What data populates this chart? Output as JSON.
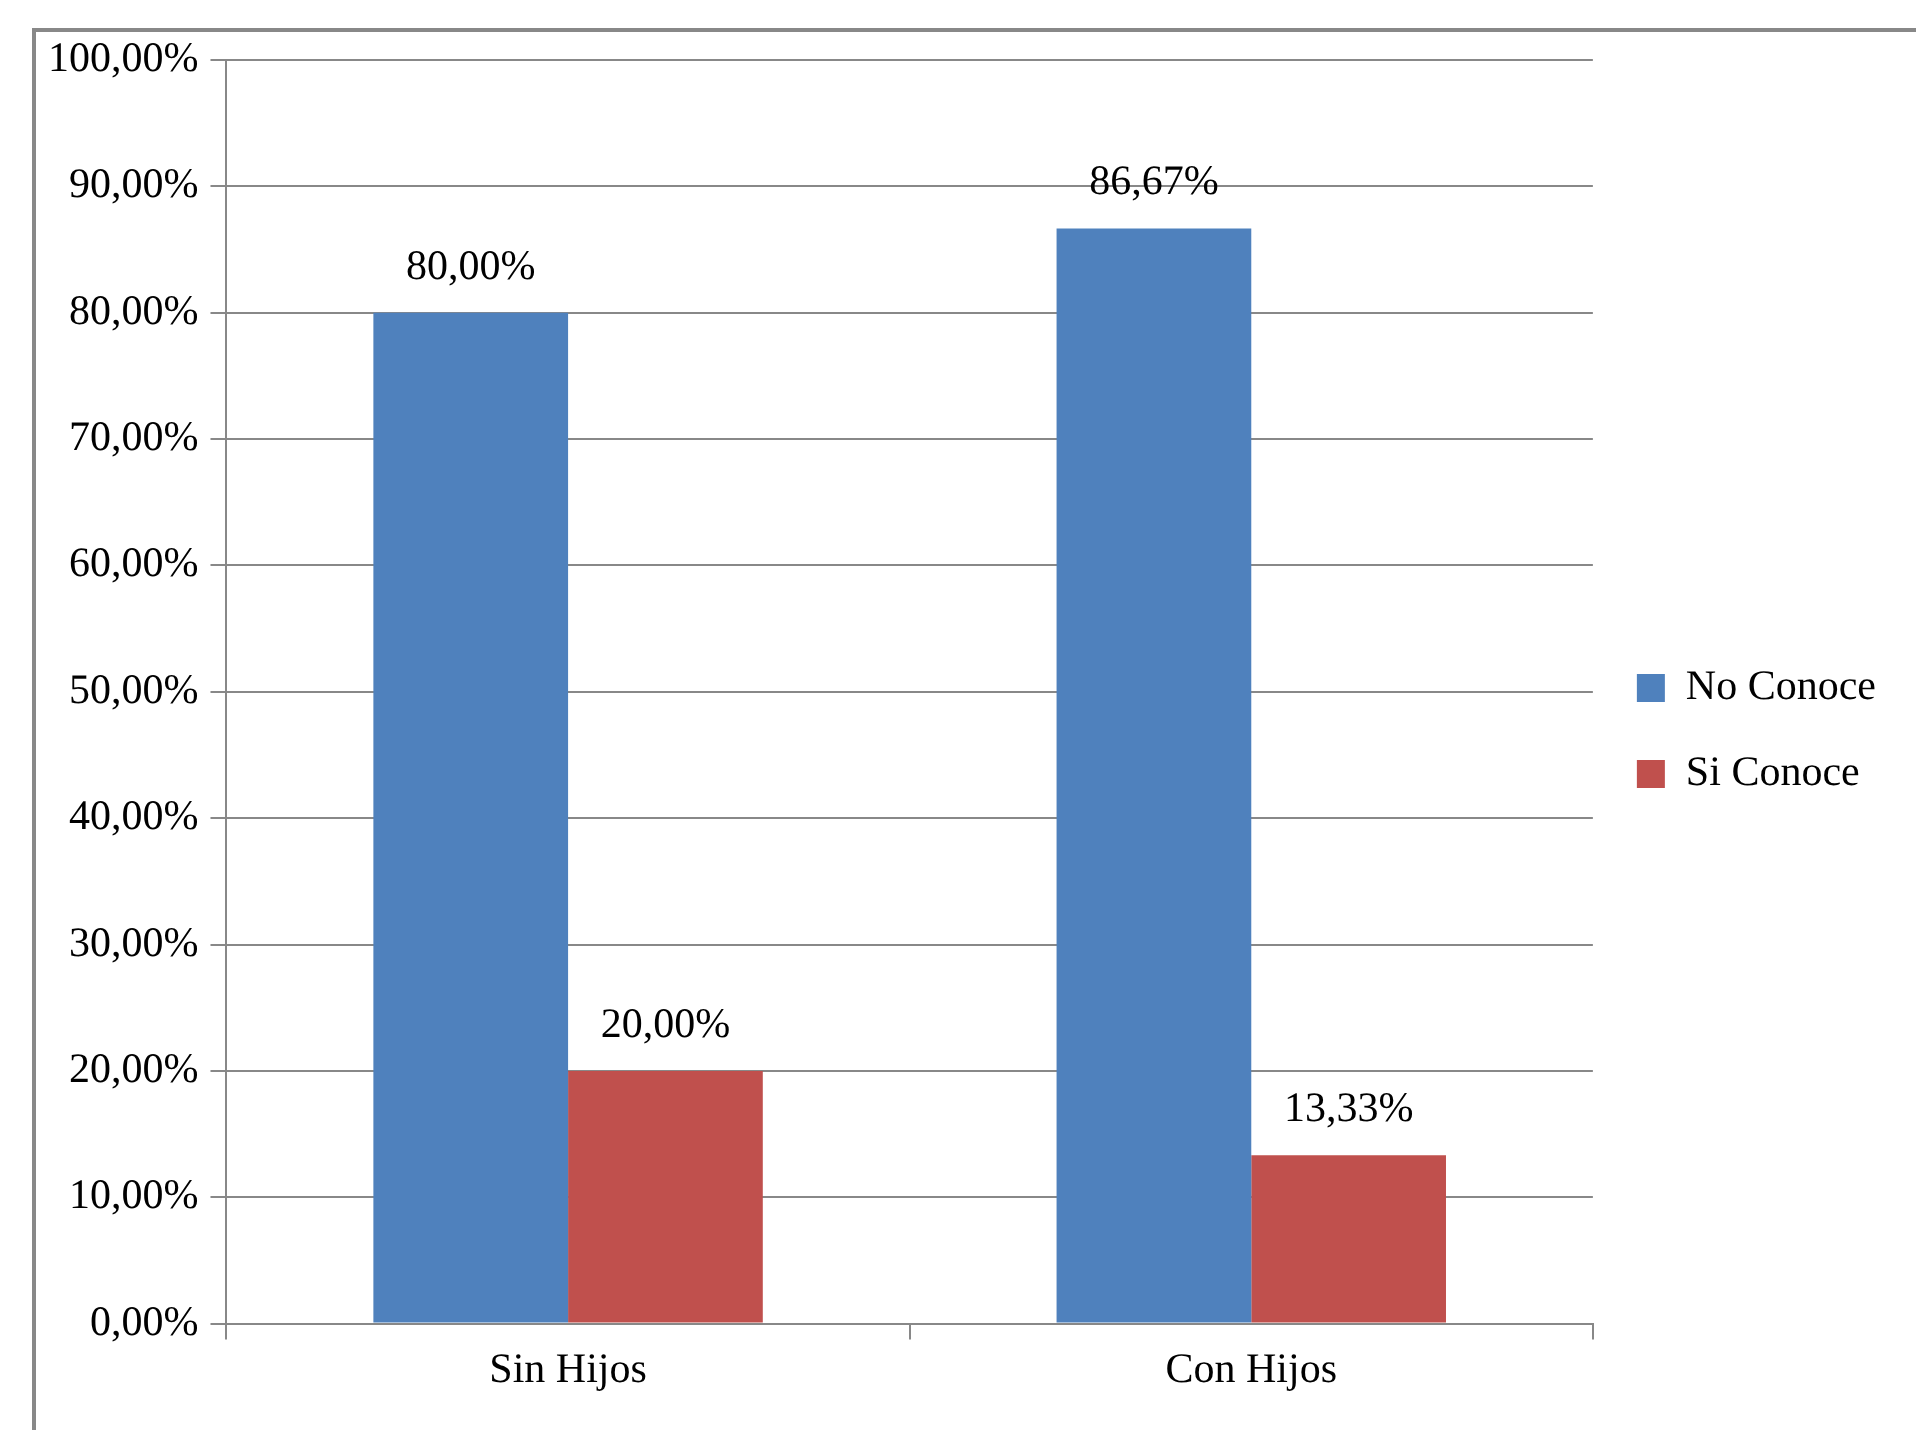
{
  "chart_data": {
    "type": "bar",
    "categories": [
      "Sin Hijos",
      "Con Hijos"
    ],
    "series": [
      {
        "name": "No Conoce",
        "color": "#4f81bd",
        "values": [
          80.0,
          86.67
        ],
        "value_labels": [
          "80,00%",
          "86,67%"
        ]
      },
      {
        "name": "Si Conoce",
        "color": "#c0504d",
        "values": [
          20.0,
          13.33
        ],
        "value_labels": [
          "20,00%",
          "13,33%"
        ]
      }
    ],
    "ylim": [
      0,
      100
    ],
    "yticks": [
      {
        "value": 0,
        "label": "0,00%"
      },
      {
        "value": 10,
        "label": "10,00%"
      },
      {
        "value": 20,
        "label": "20,00%"
      },
      {
        "value": 30,
        "label": "30,00%"
      },
      {
        "value": 40,
        "label": "40,00%"
      },
      {
        "value": 50,
        "label": "50,00%"
      },
      {
        "value": 60,
        "label": "60,00%"
      },
      {
        "value": 70,
        "label": "70,00%"
      },
      {
        "value": 80,
        "label": "80,00%"
      },
      {
        "value": 90,
        "label": "90,00%"
      },
      {
        "value": 100,
        "label": "100,00%"
      }
    ],
    "grid": "y",
    "legend": "right"
  }
}
